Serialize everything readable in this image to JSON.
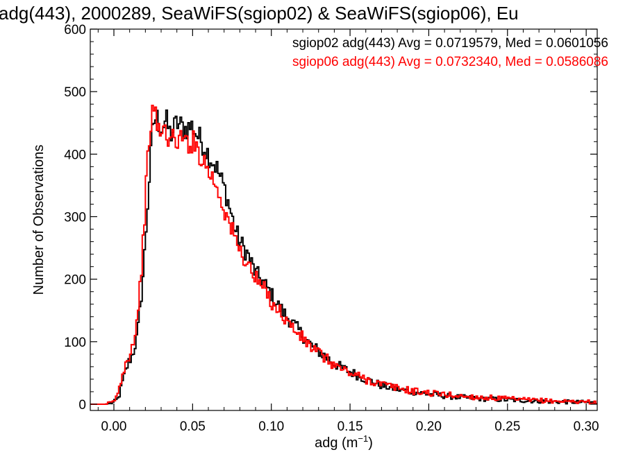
{
  "chart_data": {
    "type": "line",
    "title": "adg(443), 2000289, SeaWiFS(sgiop02) & SeaWiFS(sgiop06), Eu",
    "xlabel_base": "adg (m",
    "xlabel_sup": "−1",
    "xlabel_close": ")",
    "ylabel": "Number of Observations",
    "xlim": [
      -0.015,
      0.307
    ],
    "ylim": [
      -10,
      600
    ],
    "xticks": [
      {
        "v": 0.0,
        "label": "0.00"
      },
      {
        "v": 0.05,
        "label": "0.05"
      },
      {
        "v": 0.1,
        "label": "0.10"
      },
      {
        "v": 0.15,
        "label": "0.15"
      },
      {
        "v": 0.2,
        "label": "0.20"
      },
      {
        "v": 0.25,
        "label": "0.25"
      },
      {
        "v": 0.3,
        "label": "0.30"
      }
    ],
    "yticks": [
      {
        "v": 0,
        "label": "0"
      },
      {
        "v": 100,
        "label": "100"
      },
      {
        "v": 200,
        "label": "200"
      },
      {
        "v": 300,
        "label": "300"
      },
      {
        "v": 400,
        "label": "400"
      },
      {
        "v": 500,
        "label": "500"
      },
      {
        "v": 600,
        "label": "600"
      }
    ],
    "grid": false,
    "legend": "top-right",
    "series": [
      {
        "name": "sgiop02",
        "color": "#000000",
        "legend_text": "sgiop02 adg(443) Avg = 0.0719579, Med = 0.0601056",
        "points": [
          [
            -0.015,
            0
          ],
          [
            -0.005,
            0
          ],
          [
            0.0,
            3
          ],
          [
            0.003,
            10
          ],
          [
            0.006,
            40
          ],
          [
            0.009,
            65
          ],
          [
            0.012,
            80
          ],
          [
            0.015,
            110
          ],
          [
            0.017,
            160
          ],
          [
            0.019,
            220
          ],
          [
            0.021,
            300
          ],
          [
            0.023,
            380
          ],
          [
            0.025,
            450
          ],
          [
            0.027,
            460
          ],
          [
            0.03,
            440
          ],
          [
            0.033,
            455
          ],
          [
            0.036,
            430
          ],
          [
            0.04,
            450
          ],
          [
            0.045,
            440
          ],
          [
            0.05,
            445
          ],
          [
            0.053,
            430
          ],
          [
            0.056,
            420
          ],
          [
            0.06,
            400
          ],
          [
            0.065,
            380
          ],
          [
            0.068,
            360
          ],
          [
            0.071,
            340
          ],
          [
            0.074,
            310
          ],
          [
            0.077,
            280
          ],
          [
            0.08,
            260
          ],
          [
            0.085,
            240
          ],
          [
            0.09,
            210
          ],
          [
            0.095,
            195
          ],
          [
            0.1,
            175
          ],
          [
            0.105,
            155
          ],
          [
            0.11,
            140
          ],
          [
            0.115,
            125
          ],
          [
            0.12,
            110
          ],
          [
            0.125,
            95
          ],
          [
            0.13,
            85
          ],
          [
            0.135,
            75
          ],
          [
            0.14,
            65
          ],
          [
            0.145,
            58
          ],
          [
            0.15,
            52
          ],
          [
            0.155,
            46
          ],
          [
            0.16,
            40
          ],
          [
            0.17,
            30
          ],
          [
            0.18,
            24
          ],
          [
            0.19,
            20
          ],
          [
            0.2,
            16
          ],
          [
            0.22,
            11
          ],
          [
            0.24,
            8
          ],
          [
            0.26,
            6
          ],
          [
            0.28,
            4
          ],
          [
            0.3,
            3
          ],
          [
            0.307,
            2
          ]
        ]
      },
      {
        "name": "sgiop06",
        "color": "#ff0000",
        "legend_text": "sgiop06 adg(443) Avg = 0.0732340, Med = 0.0586086",
        "points": [
          [
            -0.015,
            0
          ],
          [
            -0.005,
            0
          ],
          [
            0.0,
            4
          ],
          [
            0.003,
            20
          ],
          [
            0.006,
            55
          ],
          [
            0.009,
            75
          ],
          [
            0.012,
            95
          ],
          [
            0.015,
            140
          ],
          [
            0.017,
            200
          ],
          [
            0.019,
            280
          ],
          [
            0.021,
            370
          ],
          [
            0.023,
            445
          ],
          [
            0.025,
            470
          ],
          [
            0.027,
            455
          ],
          [
            0.03,
            430
          ],
          [
            0.033,
            440
          ],
          [
            0.036,
            420
          ],
          [
            0.04,
            425
          ],
          [
            0.045,
            420
          ],
          [
            0.05,
            420
          ],
          [
            0.053,
            410
          ],
          [
            0.056,
            395
          ],
          [
            0.06,
            375
          ],
          [
            0.065,
            350
          ],
          [
            0.068,
            330
          ],
          [
            0.071,
            305
          ],
          [
            0.074,
            285
          ],
          [
            0.077,
            265
          ],
          [
            0.08,
            245
          ],
          [
            0.085,
            225
          ],
          [
            0.09,
            200
          ],
          [
            0.095,
            185
          ],
          [
            0.1,
            165
          ],
          [
            0.105,
            150
          ],
          [
            0.11,
            133
          ],
          [
            0.115,
            118
          ],
          [
            0.12,
            105
          ],
          [
            0.125,
            92
          ],
          [
            0.13,
            82
          ],
          [
            0.135,
            72
          ],
          [
            0.14,
            63
          ],
          [
            0.145,
            56
          ],
          [
            0.15,
            50
          ],
          [
            0.155,
            45
          ],
          [
            0.16,
            40
          ],
          [
            0.17,
            32
          ],
          [
            0.18,
            26
          ],
          [
            0.19,
            21
          ],
          [
            0.2,
            18
          ],
          [
            0.22,
            13
          ],
          [
            0.24,
            10
          ],
          [
            0.26,
            7
          ],
          [
            0.28,
            5
          ],
          [
            0.3,
            4
          ],
          [
            0.307,
            3
          ]
        ]
      }
    ]
  }
}
